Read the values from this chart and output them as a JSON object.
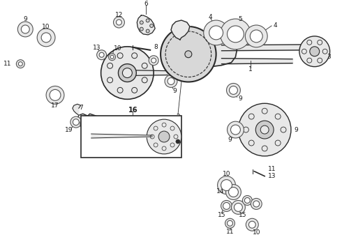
{
  "bg_color": "#ffffff",
  "fig_width": 4.9,
  "fig_height": 3.6,
  "dpi": 100,
  "text_color": "#1a1a1a",
  "line_color": "#2a2a2a",
  "diagram_color": "#555555",
  "fill_color": "#cccccc",
  "light_fill": "#e8e8e8"
}
